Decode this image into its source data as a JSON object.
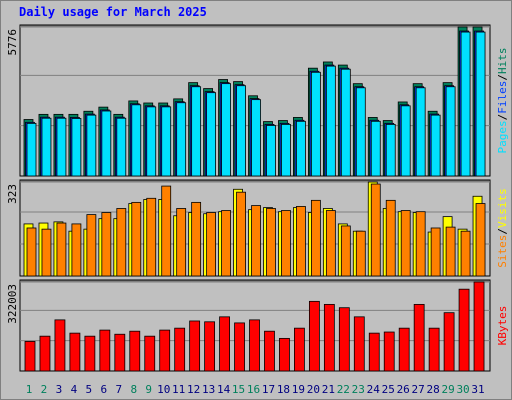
{
  "chart_data": [
    {
      "type": "bar",
      "title": "Daily usage for March 2025",
      "legend_separator": "/",
      "ylim": [
        0,
        5776
      ],
      "yticks": [
        5776
      ],
      "series": [
        {
          "name": "Hits",
          "color": "#00805c",
          "values": [
            2190,
            2390,
            2390,
            2390,
            2510,
            2670,
            2390,
            2910,
            2830,
            2830,
            2990,
            3620,
            3390,
            3740,
            3660,
            3110,
            2110,
            2150,
            2270,
            4180,
            4420,
            4300,
            3580,
            2270,
            2150,
            2870,
            3580,
            2510,
            3620,
            5776,
            5776
          ]
        },
        {
          "name": "Files",
          "color": "#0040ff",
          "values": [
            2080,
            2280,
            2280,
            2270,
            2400,
            2560,
            2280,
            2800,
            2720,
            2720,
            2880,
            3500,
            3270,
            3620,
            3540,
            3000,
            2000,
            2040,
            2160,
            4060,
            4300,
            4180,
            3460,
            2160,
            2040,
            2760,
            3460,
            2400,
            3500,
            5620,
            5620
          ]
        },
        {
          "name": "Pages",
          "color": "#00e0ff",
          "values": [
            2040,
            2240,
            2240,
            2230,
            2360,
            2520,
            2240,
            2760,
            2680,
            2680,
            2840,
            3460,
            3230,
            3580,
            3500,
            2960,
            1960,
            2000,
            2120,
            4020,
            4260,
            4140,
            3420,
            2120,
            2000,
            2720,
            3420,
            2360,
            3460,
            5580,
            5580
          ]
        }
      ]
    },
    {
      "type": "bar",
      "legend_separator": "/",
      "ylim": [
        0,
        323
      ],
      "yticks": [
        323
      ],
      "series": [
        {
          "name": "Visits",
          "color": "#ffff00",
          "values": [
            179,
            182,
            186,
            154,
            161,
            197,
            197,
            249,
            263,
            263,
            207,
            218,
            214,
            221,
            298,
            228,
            235,
            221,
            235,
            218,
            232,
            179,
            154,
            323,
            232,
            221,
            218,
            151,
            204,
            161,
            274
          ]
        },
        {
          "name": "Sites",
          "color": "#ff8000",
          "values": [
            165,
            161,
            182,
            179,
            211,
            218,
            232,
            253,
            267,
            309,
            232,
            253,
            218,
            225,
            288,
            242,
            232,
            225,
            239,
            260,
            225,
            172,
            154,
            316,
            260,
            225,
            221,
            165,
            168,
            154,
            249
          ]
        }
      ]
    },
    {
      "type": "bar",
      "ylim": [
        0,
        322003
      ],
      "yticks": [
        322003
      ],
      "categories": [
        "1",
        "2",
        "3",
        "4",
        "5",
        "6",
        "7",
        "8",
        "9",
        "10",
        "11",
        "12",
        "13",
        "14",
        "15",
        "16",
        "17",
        "18",
        "19",
        "20",
        "21",
        "22",
        "23",
        "24",
        "25",
        "26",
        "27",
        "28",
        "29",
        "30",
        "31"
      ],
      "category_colors": [
        "#00805c",
        "#00805c",
        "#000080",
        "#000080",
        "#000080",
        "#000080",
        "#000080",
        "#00805c",
        "#00805c",
        "#000080",
        "#000080",
        "#000080",
        "#000080",
        "#000080",
        "#00805c",
        "#00805c",
        "#000080",
        "#000080",
        "#000080",
        "#000080",
        "#000080",
        "#00805c",
        "#00805c",
        "#000080",
        "#000080",
        "#000080",
        "#000080",
        "#000080",
        "#00805c",
        "#00805c",
        "#000080"
      ],
      "series": [
        {
          "name": "KBytes",
          "color": "#ff0000",
          "values": [
            107000,
            126000,
            185000,
            137000,
            126000,
            148000,
            133000,
            144000,
            126000,
            148000,
            155000,
            181000,
            178000,
            196000,
            174000,
            185000,
            144000,
            118000,
            155000,
            252000,
            241000,
            229000,
            196000,
            137000,
            141000,
            155000,
            241000,
            155000,
            211000,
            296000,
            322003
          ]
        }
      ]
    }
  ]
}
